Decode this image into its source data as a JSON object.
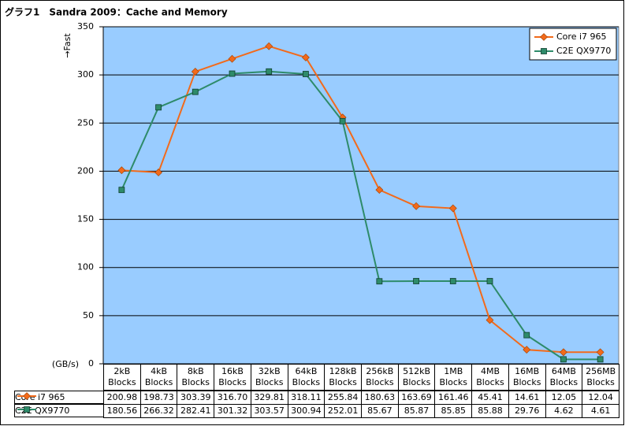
{
  "chart_data": {
    "type": "line",
    "title": "グラフ1　Sandra 2009：Cache and Memory",
    "y_label": "→Fast",
    "y_unit": "(GB/s)",
    "categories": [
      "2kB Blocks",
      "4kB Blocks",
      "8kB Blocks",
      "16kB Blocks",
      "32kB Blocks",
      "64kB Blocks",
      "128kB Blocks",
      "256kB Blocks",
      "512kB Blocks",
      "1MB Blocks",
      "4MB Blocks",
      "16MB Blocks",
      "64MB Blocks",
      "256MB Blocks"
    ],
    "series": [
      {
        "name": "Core i7 965",
        "color": "#f26a1b",
        "marker": "diamond",
        "values": [
          200.98,
          198.73,
          303.39,
          316.7,
          329.81,
          318.11,
          255.84,
          180.63,
          163.69,
          161.46,
          45.41,
          14.61,
          12.05,
          12.04
        ],
        "value_labels": [
          "200.98",
          "198.73",
          "303.39",
          "316.70",
          "329.81",
          "318.11",
          "255.84",
          "180.63",
          "163.69",
          "161.46",
          "45.41",
          "14.61",
          "12.05",
          "12.04"
        ]
      },
      {
        "name": "C2E QX9770",
        "color": "#2e8b6a",
        "marker": "square",
        "values": [
          180.56,
          266.32,
          282.41,
          301.32,
          303.57,
          300.94,
          252.01,
          85.67,
          85.87,
          85.85,
          85.88,
          29.76,
          4.62,
          4.61
        ],
        "value_labels": [
          "180.56",
          "266.32",
          "282.41",
          "301.32",
          "303.57",
          "300.94",
          "252.01",
          "85.67",
          "85.87",
          "85.85",
          "85.88",
          "29.76",
          "4.62",
          "4.61"
        ]
      }
    ],
    "ylim": [
      0,
      350
    ],
    "yticks": [
      0,
      50,
      100,
      150,
      200,
      250,
      300,
      350
    ],
    "grid": true,
    "plot_background": "#99ccff",
    "legend": "top-right"
  }
}
